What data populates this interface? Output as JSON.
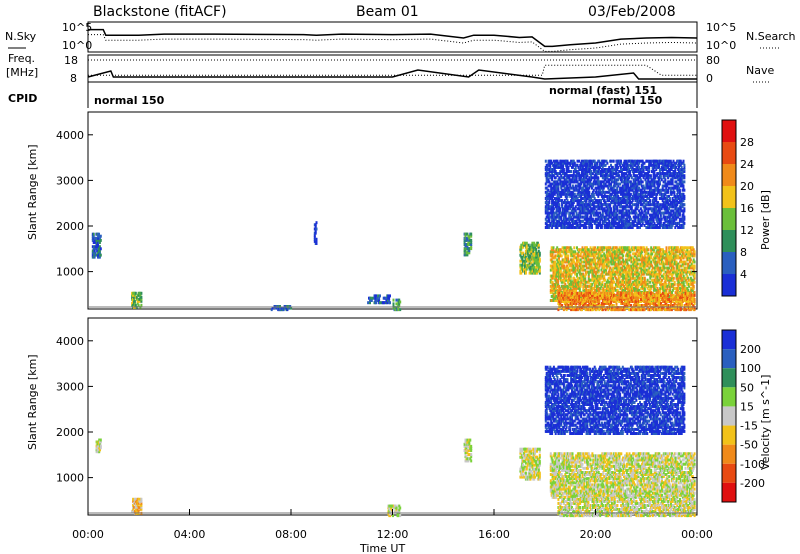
{
  "header": {
    "station": "Blackstone (fitACF)",
    "beam": "Beam 01",
    "date": "03/Feb/2008"
  },
  "top_panels": {
    "nsky_label": "N.Sky",
    "nsearch_label": "N.Search",
    "nsky_ticks": [
      "10^5",
      "10^0"
    ],
    "freq_label_line1": "Freq.",
    "freq_label_line2": "[MHz]",
    "freq_ticks": [
      "18",
      "8"
    ],
    "nave_label": "Nave",
    "nave_ticks": [
      "80",
      "0"
    ],
    "cpid_label": "CPID",
    "cpid_entries": [
      "normal 150",
      "normal (fast) 151",
      "normal 150"
    ]
  },
  "colors": {
    "power": [
      "#1a2fd6",
      "#2a5fbf",
      "#2f8f5a",
      "#6bbf3a",
      "#f2c21a",
      "#f08a1a",
      "#e84a12",
      "#e01010"
    ],
    "velocity": [
      "#1a2fd6",
      "#2a5fbf",
      "#2f8f5a",
      "#7ad23a",
      "#c8c8c8",
      "#f2c21a",
      "#f08a1a",
      "#e84a12",
      "#e01010"
    ],
    "ground_scatter": "#b4b4b4"
  },
  "chart_data": [
    {
      "type": "heatmap",
      "panel": "power",
      "ylabel": "Slant Range [km]",
      "xlabel": "Time UT",
      "x_ticks": [
        "00:00",
        "04:00",
        "08:00",
        "12:00",
        "16:00",
        "20:00",
        "00:00"
      ],
      "y_ticks": [
        1000,
        2000,
        3000,
        4000
      ],
      "ylim": [
        180,
        4500
      ],
      "colorbar_label": "Power [dB]",
      "colorbar_ticks": [
        "4",
        "8",
        "12",
        "16",
        "20",
        "24",
        "28"
      ],
      "scatter_regions": [
        {
          "t": [
            0.15,
            0.5
          ],
          "r": [
            1350,
            1900
          ],
          "level": 1
        },
        {
          "t": [
            1.7,
            2.1
          ],
          "r": [
            250,
            600
          ],
          "level": 3
        },
        {
          "t": [
            7.2,
            8.0
          ],
          "r": [
            200,
            300
          ],
          "level": 1
        },
        {
          "t": [
            8.9,
            9.0
          ],
          "r": [
            1650,
            2150
          ],
          "level": 0
        },
        {
          "t": [
            11.0,
            11.9
          ],
          "r": [
            350,
            550
          ],
          "level": 1
        },
        {
          "t": [
            12.0,
            12.3
          ],
          "r": [
            200,
            450
          ],
          "level": 2
        },
        {
          "t": [
            14.8,
            15.1
          ],
          "r": [
            1400,
            1900
          ],
          "level": 2
        },
        {
          "t": [
            17.0,
            17.8
          ],
          "r": [
            1000,
            1700
          ],
          "level": 3
        },
        {
          "t": [
            18.2,
            23.9
          ],
          "r": [
            400,
            1600
          ],
          "level": 4
        },
        {
          "t": [
            18.5,
            23.9
          ],
          "r": [
            200,
            600
          ],
          "level": 5
        },
        {
          "t": [
            18.0,
            23.5
          ],
          "r": [
            2000,
            3500
          ],
          "level": 0
        }
      ]
    },
    {
      "type": "heatmap",
      "panel": "velocity",
      "ylabel": "Slant Range [km]",
      "xlabel": "Time UT",
      "x_ticks": [
        "00:00",
        "04:00",
        "08:00",
        "12:00",
        "16:00",
        "20:00",
        "00:00"
      ],
      "y_ticks": [
        1000,
        2000,
        3000,
        4000
      ],
      "ylim": [
        180,
        4500
      ],
      "colorbar_label": "Velocity [m s^-1]",
      "colorbar_ticks": [
        "200",
        "100",
        "50",
        "15",
        "-15",
        "-50",
        "-100",
        "-200"
      ],
      "scatter_regions": [
        {
          "t": [
            0.3,
            0.5
          ],
          "r": [
            1600,
            1900
          ],
          "level": 4
        },
        {
          "t": [
            1.7,
            2.1
          ],
          "r": [
            250,
            600
          ],
          "level": 5
        },
        {
          "t": [
            11.8,
            12.3
          ],
          "r": [
            200,
            450
          ],
          "level": 4
        },
        {
          "t": [
            14.8,
            15.1
          ],
          "r": [
            1400,
            1900
          ],
          "level": 4
        },
        {
          "t": [
            17.0,
            17.8
          ],
          "r": [
            1000,
            1700
          ],
          "level": 4
        },
        {
          "t": [
            18.2,
            23.9
          ],
          "r": [
            600,
            1600
          ],
          "level": 4
        },
        {
          "t": [
            18.5,
            23.9
          ],
          "r": [
            200,
            600
          ],
          "level": 4
        },
        {
          "t": [
            18.0,
            23.5
          ],
          "r": [
            2000,
            3500
          ],
          "level": 0
        }
      ]
    }
  ],
  "time_series": {
    "nsky": [
      [
        0.0,
        4
      ],
      [
        0.6,
        4
      ],
      [
        0.7,
        3
      ],
      [
        2.0,
        3
      ],
      [
        3.0,
        3.2
      ],
      [
        5.0,
        3.2
      ],
      [
        8.5,
        3.1
      ],
      [
        9.0,
        3
      ],
      [
        10.0,
        3.2
      ],
      [
        12.0,
        3.1
      ],
      [
        13.5,
        3.2
      ],
      [
        14.8,
        2.5
      ],
      [
        15.2,
        3
      ],
      [
        16.0,
        3
      ],
      [
        17.0,
        2.6
      ],
      [
        17.5,
        2.7
      ],
      [
        18.0,
        1
      ],
      [
        18.3,
        1
      ],
      [
        19.0,
        1.3
      ],
      [
        20.0,
        1.6
      ],
      [
        21.0,
        2.3
      ],
      [
        22.0,
        2.5
      ],
      [
        23.0,
        2.6
      ],
      [
        24.0,
        2.5
      ]
    ],
    "freq": [
      [
        0.0,
        9
      ],
      [
        0.9,
        12
      ],
      [
        1.0,
        9
      ],
      [
        4.0,
        9
      ],
      [
        12.0,
        9
      ],
      [
        13.0,
        12.5
      ],
      [
        15.0,
        9
      ],
      [
        15.4,
        12.5
      ],
      [
        17.5,
        9
      ],
      [
        18.0,
        8
      ],
      [
        20.0,
        9
      ],
      [
        21.5,
        11
      ],
      [
        21.7,
        8
      ],
      [
        22.0,
        8
      ],
      [
        24.0,
        8
      ]
    ],
    "nave": [
      [
        0.0,
        15
      ],
      [
        4.0,
        15
      ],
      [
        8.0,
        15
      ],
      [
        12.0,
        15
      ],
      [
        17.9,
        15
      ],
      [
        18.0,
        55
      ],
      [
        22.0,
        55
      ],
      [
        22.6,
        15
      ],
      [
        24.0,
        15
      ]
    ]
  }
}
